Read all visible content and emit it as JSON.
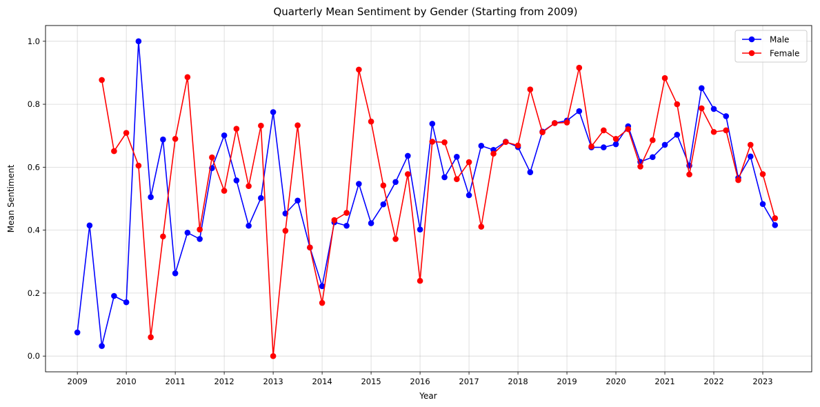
{
  "chart_data": {
    "type": "line",
    "title": "Quarterly Mean Sentiment by Gender (Starting from 2009)",
    "xlabel": "Year",
    "ylabel": "Mean Sentiment",
    "xlim": [
      2008.35,
      2024.0
    ],
    "ylim": [
      -0.05,
      1.05
    ],
    "x_ticks": [
      2009,
      2010,
      2011,
      2012,
      2013,
      2014,
      2015,
      2016,
      2017,
      2018,
      2019,
      2020,
      2021,
      2022,
      2023
    ],
    "y_ticks": [
      0.0,
      0.2,
      0.4,
      0.6,
      0.8,
      1.0
    ],
    "y_tick_labels": [
      "0.0",
      "0.2",
      "0.4",
      "0.6",
      "0.8",
      "1.0"
    ],
    "grid": true,
    "legend_position": "top-right",
    "series": [
      {
        "name": "Male",
        "color": "#0000ff",
        "x": [
          2009.0,
          2009.25,
          2009.5,
          2009.75,
          2010.0,
          2010.25,
          2010.5,
          2010.75,
          2011.0,
          2011.25,
          2011.5,
          2011.75,
          2012.0,
          2012.25,
          2012.5,
          2012.75,
          2013.0,
          2013.25,
          2013.5,
          2013.75,
          2014.0,
          2014.25,
          2014.5,
          2014.75,
          2015.0,
          2015.25,
          2015.5,
          2015.75,
          2016.0,
          2016.25,
          2016.5,
          2016.75,
          2017.0,
          2017.25,
          2017.5,
          2017.75,
          2018.0,
          2018.25,
          2018.5,
          2018.75,
          2019.0,
          2019.25,
          2019.5,
          2019.75,
          2020.0,
          2020.25,
          2020.5,
          2020.75,
          2021.0,
          2021.25,
          2021.5,
          2021.75,
          2022.0,
          2022.25,
          2022.5,
          2022.75,
          2023.0,
          2023.25
        ],
        "values": [
          0.075,
          0.415,
          0.032,
          0.191,
          0.171,
          1.0,
          0.505,
          0.688,
          0.263,
          0.392,
          0.372,
          0.597,
          0.701,
          0.558,
          0.414,
          0.502,
          0.775,
          0.453,
          0.494,
          0.345,
          0.222,
          0.425,
          0.414,
          0.547,
          0.422,
          0.482,
          0.553,
          0.636,
          0.402,
          0.738,
          0.568,
          0.633,
          0.511,
          0.668,
          0.655,
          0.681,
          0.664,
          0.584,
          0.713,
          0.74,
          0.748,
          0.778,
          0.663,
          0.663,
          0.673,
          0.73,
          0.617,
          0.632,
          0.671,
          0.703,
          0.605,
          0.851,
          0.785,
          0.762,
          0.566,
          0.634,
          0.483,
          0.416
        ]
      },
      {
        "name": "Female",
        "color": "#ff0000",
        "x": [
          2009.5,
          2009.75,
          2010.0,
          2010.25,
          2010.5,
          2010.75,
          2011.0,
          2011.25,
          2011.5,
          2011.75,
          2012.0,
          2012.25,
          2012.5,
          2012.75,
          2013.0,
          2013.25,
          2013.5,
          2013.75,
          2014.0,
          2014.25,
          2014.5,
          2014.75,
          2015.0,
          2015.25,
          2015.5,
          2015.75,
          2016.0,
          2016.25,
          2016.5,
          2016.75,
          2017.0,
          2017.25,
          2017.5,
          2017.75,
          2018.0,
          2018.25,
          2018.5,
          2018.75,
          2019.0,
          2019.25,
          2019.5,
          2019.75,
          2020.0,
          2020.25,
          2020.5,
          2020.75,
          2021.0,
          2021.25,
          2021.5,
          2021.75,
          2022.0,
          2022.25,
          2022.5,
          2022.75,
          2023.0,
          2023.25
        ],
        "values": [
          0.877,
          0.651,
          0.709,
          0.605,
          0.06,
          0.38,
          0.69,
          0.886,
          0.402,
          0.631,
          0.525,
          0.722,
          0.54,
          0.732,
          0.0,
          0.398,
          0.733,
          0.345,
          0.169,
          0.432,
          0.455,
          0.91,
          0.745,
          0.542,
          0.372,
          0.578,
          0.239,
          0.681,
          0.679,
          0.562,
          0.616,
          0.411,
          0.643,
          0.68,
          0.669,
          0.847,
          0.711,
          0.74,
          0.742,
          0.916,
          0.666,
          0.717,
          0.69,
          0.721,
          0.602,
          0.686,
          0.883,
          0.8,
          0.577,
          0.787,
          0.712,
          0.717,
          0.559,
          0.671,
          0.578,
          0.438
        ]
      }
    ]
  }
}
